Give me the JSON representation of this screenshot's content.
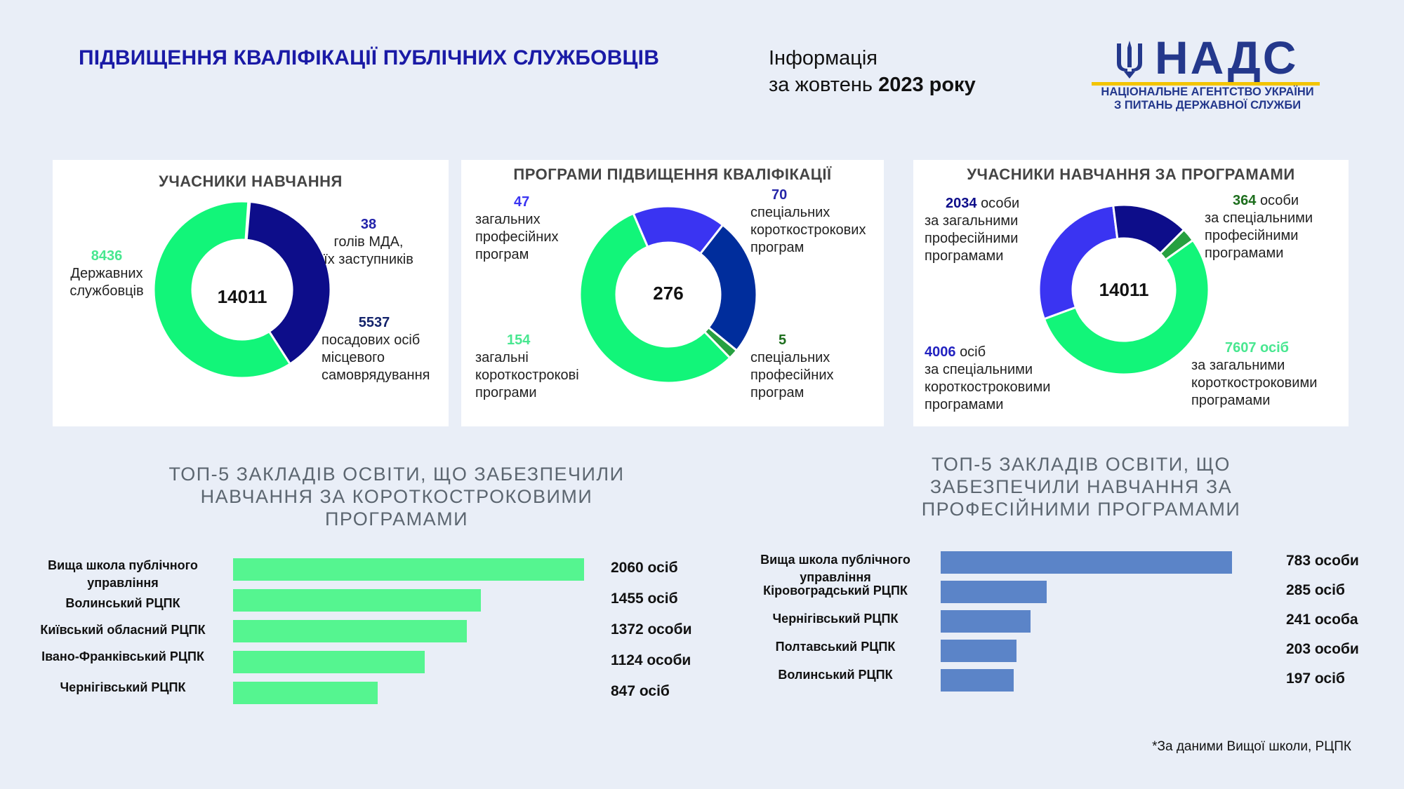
{
  "header": {
    "title": "ПІДВИЩЕННЯ КВАЛІФІКАЦІЇ ПУБЛІЧНИХ СЛУЖБОВЦІВ",
    "info_line1": "Інформація",
    "info_line2_prefix": "за жовтень",
    "info_year": "2023 року"
  },
  "logo": {
    "name": "НАДС",
    "sub1": "НАЦІОНАЛЬНЕ АГЕНТСТВО УКРАЇНИ",
    "sub2": "З ПИТАНЬ ДЕРЖАВНОЇ СЛУЖБИ",
    "emblem_icon": "trident-icon"
  },
  "colors": {
    "green": "#12f579",
    "navy": "#0d0d8a",
    "blue": "#002d9c",
    "purple": "#3a34f2",
    "darkgreen": "#27a040",
    "bar_green": "#55f590",
    "bar_blue": "#5b84c8"
  },
  "footnote": "*За даними Вищої школи, РЦПК",
  "chart_data": [
    {
      "type": "pie",
      "title": "УЧАСНИКИ НАВЧАННЯ",
      "center_total": "14011",
      "slices": [
        {
          "value": 38,
          "num": "38",
          "text": [
            "голів МДА,",
            "їх заступників"
          ],
          "color": "#0d0d8a",
          "num_color": "#2222aa"
        },
        {
          "value": 5537,
          "num": "5537",
          "text": [
            "посадових осіб",
            "місцевого",
            "самоврядування"
          ],
          "color": "#0d0d8a",
          "num_color": "#13236b"
        },
        {
          "value": 8436,
          "num": "8436",
          "text": [
            "Державних",
            "службовців"
          ],
          "color": "#12f579",
          "num_color": "#48e790"
        }
      ]
    },
    {
      "type": "pie",
      "title": "ПРОГРАМИ ПІДВИЩЕННЯ КВАЛІФІКАЦІЇ",
      "center_total": "276",
      "slices": [
        {
          "value": 70,
          "num": "70",
          "text": [
            "спеціальних",
            "короткострокових",
            "програм"
          ],
          "color": "#002d9c",
          "num_color": "#2525a8"
        },
        {
          "value": 5,
          "num": "5",
          "text": [
            "спеціальних",
            "професійних",
            "програм"
          ],
          "color": "#27a040",
          "num_color": "#1d6e1d"
        },
        {
          "value": 154,
          "num": "154",
          "text": [
            "загальні",
            "короткострокові",
            "програми"
          ],
          "color": "#12f579",
          "num_color": "#48e790"
        },
        {
          "value": 47,
          "num": "47",
          "text": [
            "загальних",
            "професійних",
            "програм"
          ],
          "color": "#3a34f2",
          "num_color": "#3a34f2"
        }
      ]
    },
    {
      "type": "pie",
      "title": "УЧАСНИКИ НАВЧАННЯ ЗА ПРОГРАМАМИ",
      "center_total": "14011",
      "slices": [
        {
          "value": 364,
          "num": "364",
          "text_first": "особи",
          "text": [
            "за спеціальними",
            "професійними",
            "програмами"
          ],
          "color": "#27a040",
          "num_color": "#1d6e1d"
        },
        {
          "value": 7607,
          "num": "7607 осіб",
          "text": [
            "за загальними",
            "короткостроковими",
            "програмами"
          ],
          "color": "#12f579",
          "num_color": "#48e790"
        },
        {
          "value": 4006,
          "num": "4006",
          "text_first": "осіб",
          "text": [
            "за спеціальними",
            "короткостроковими",
            "програмами"
          ],
          "color": "#3a34f2",
          "num_color": "#2222c0"
        },
        {
          "value": 2034,
          "num": "2034",
          "text_first": "особи",
          "text": [
            "за загальними",
            "професійними",
            "програмами"
          ],
          "color": "#0d0d8a",
          "num_color": "#0d0d8a"
        }
      ]
    },
    {
      "type": "bar",
      "orientation": "horizontal",
      "title": [
        "ТОП-5 ЗАКЛАДІВ ОСВІТИ, ЩО ЗАБЕЗПЕЧИЛИ",
        "НАВЧАННЯ ЗА КОРОТКОСТРОКОВИМИ",
        "ПРОГРАМАМИ"
      ],
      "categories": [
        "Вища школа публічного управління",
        "Волинський РЦПК",
        "Київський обласний РЦПК",
        "Івано-Франківський РЦПК",
        "Чернігівський РЦПК"
      ],
      "values": [
        2060,
        1455,
        1372,
        1124,
        847
      ],
      "value_labels": [
        "2060 осіб",
        "1455 осіб",
        "1372 особи",
        "1124 особи",
        "847 осіб"
      ],
      "xlim": [
        0,
        2060
      ],
      "color": "#55f590"
    },
    {
      "type": "bar",
      "orientation": "horizontal",
      "title": [
        "ТОП-5 ЗАКЛАДІВ ОСВІТИ, ЩО",
        "ЗАБЕЗПЕЧИЛИ НАВЧАННЯ ЗА",
        "ПРОФЕСІЙНИМИ ПРОГРАМАМИ"
      ],
      "categories": [
        "Вища школа публічного управління",
        "Кіровоградський РЦПК",
        "Чернігівський РЦПК",
        "Полтавський РЦПК",
        "Волинський РЦПК"
      ],
      "values": [
        783,
        285,
        241,
        203,
        197
      ],
      "value_labels": [
        "783 особи",
        "285 осіб",
        "241 особа",
        "203 особи",
        "197 осіб"
      ],
      "xlim": [
        0,
        783
      ],
      "color": "#5b84c8"
    }
  ]
}
